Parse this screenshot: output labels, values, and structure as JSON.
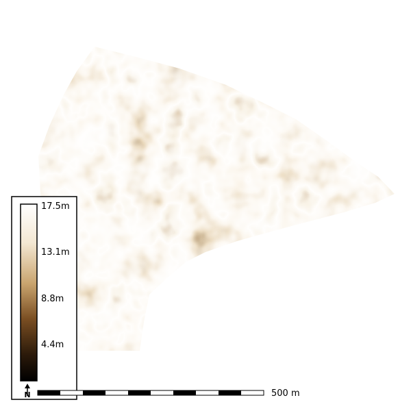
{
  "map": {
    "colormap": [
      "#000000",
      "#3a2410",
      "#8a5a28",
      "#c9a46e",
      "#efe0c4",
      "#fffaf2"
    ],
    "legend": {
      "ticks": [
        {
          "label": "17.5m",
          "value": 17.5
        },
        {
          "label": "13.1m",
          "value": 13.1
        },
        {
          "label": "8.8m",
          "value": 8.8
        },
        {
          "label": "4.4m",
          "value": 4.4
        }
      ],
      "min_value": 0,
      "max_value": 17.5
    },
    "scalebar": {
      "label": "500 m",
      "segments": 10
    },
    "north_arrow": {
      "label": "N",
      "icon": "north-arrow-icon"
    }
  }
}
